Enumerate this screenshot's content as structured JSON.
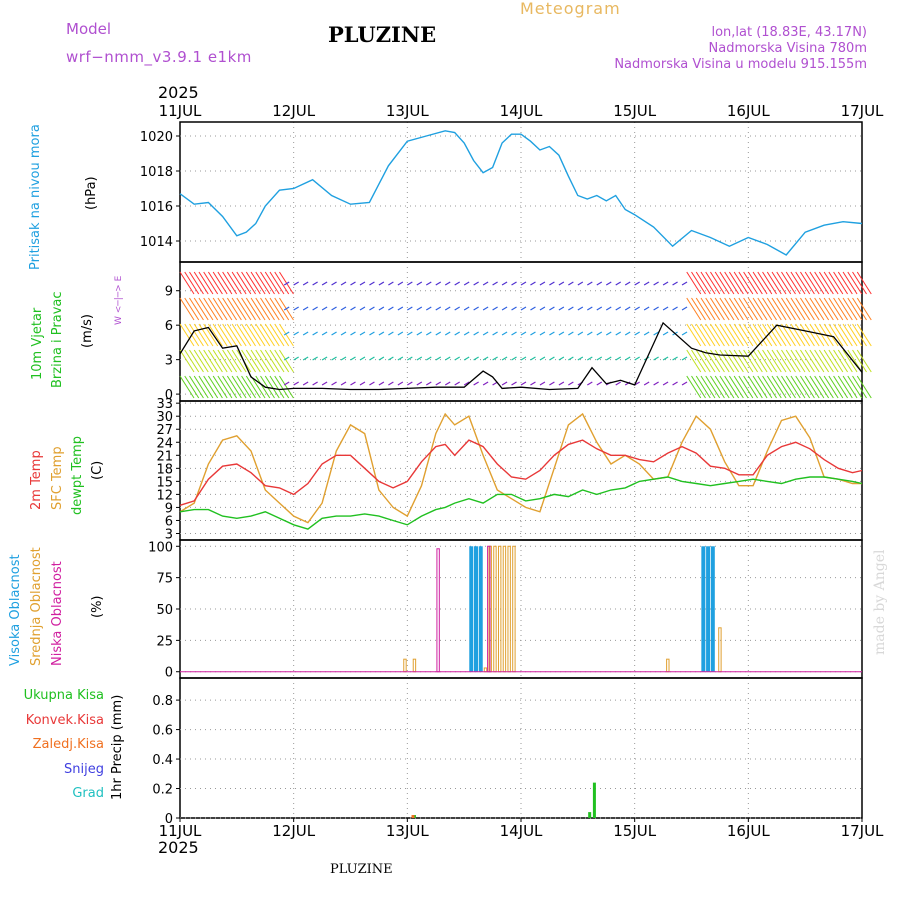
{
  "header": {
    "model_label": "Model",
    "model_name": "wrf−nmm_v3.9.1 e1km",
    "title": "PLUZINE",
    "meteogram_label": "Meteogram",
    "coords": "lon,lat (18.83E, 43.17N)",
    "elevation": "Nadmorska Visina 780m",
    "model_elevation": "Nadmorska Visina u modelu 915.155m"
  },
  "footer": {
    "station": "PLUZINE"
  },
  "watermark": "made by Angel",
  "colors": {
    "model": "#b050d0",
    "meteogram": "#e8b860",
    "pressure": "#1fa0e0",
    "wind_green": "#20c020",
    "wind_black": "#000000",
    "t2m": "#e83838",
    "sfc": "#e0a030",
    "dewpt": "#20c020",
    "high_cloud": "#1fa0e0",
    "mid_cloud": "#e0a030",
    "low_cloud": "#d020a0",
    "total_precip": "#20c020",
    "conv_precip": "#e83838",
    "frz_precip": "#f07020",
    "snow": "#4040e0",
    "hail": "#20c0c0"
  },
  "time_axis": {
    "year": "2025",
    "days": [
      "11JUL",
      "12JUL",
      "13JUL",
      "14JUL",
      "15JUL",
      "16JUL",
      "17JUL"
    ]
  },
  "panels": {
    "pressure": {
      "label": "Pritisak na nivou mora",
      "unit": "(hPa)",
      "ticks": [
        "1014",
        "1016",
        "1018",
        "1020"
      ]
    },
    "wind": {
      "label1": "10m Vjetar",
      "label2": "Brzina i Pravac",
      "unit": "(m/s)",
      "ticks": [
        "0",
        "3",
        "6",
        "9"
      ],
      "compass": "W <─|─> E"
    },
    "temp": {
      "label1": "2m Temp",
      "label2": "SFC Temp",
      "label3": "dewpt Temp",
      "unit": "(C)",
      "ticks": [
        "3",
        "6",
        "9",
        "12",
        "15",
        "18",
        "21",
        "24",
        "27",
        "30",
        "33"
      ]
    },
    "cloud": {
      "label1": "Visoka Oblacnost",
      "label2": "Srednja Oblacnost",
      "label3": "Niska Oblacnost",
      "unit": "(%)",
      "ticks": [
        "0",
        "25",
        "50",
        "75",
        "100"
      ]
    },
    "precip": {
      "labels": [
        "Ukupna Kisa",
        "Konvek.Kisa",
        "Zaledj.Kisa",
        "Snijeg",
        "Grad"
      ],
      "unit": "1hr Precip (mm)",
      "ticks": [
        "0",
        "0.2",
        "0.4",
        "0.6",
        "0.8"
      ]
    }
  },
  "chart_data": [
    {
      "type": "line",
      "title": "Pritisak na nivou mora",
      "ylabel": "(hPa)",
      "ylim": [
        1012.8,
        1020.8
      ],
      "x_hours": [
        0,
        3,
        6,
        9,
        12,
        14,
        16,
        18,
        21,
        24,
        28,
        32,
        36,
        40,
        44,
        48,
        52,
        56,
        58,
        60,
        62,
        64,
        66,
        68,
        70,
        72,
        74,
        76,
        78,
        80,
        82,
        84,
        86,
        88,
        90,
        92,
        94,
        96,
        100,
        104,
        108,
        112,
        116,
        120,
        124,
        128,
        132,
        136,
        140,
        144
      ],
      "series": [
        {
          "name": "Pritisak",
          "values": [
            1016.7,
            1016.1,
            1016.2,
            1015.4,
            1014.3,
            1014.5,
            1015.0,
            1016.0,
            1016.9,
            1017.0,
            1017.5,
            1016.6,
            1016.1,
            1016.2,
            1018.3,
            1019.7,
            1020.0,
            1020.3,
            1020.2,
            1019.6,
            1018.6,
            1017.9,
            1018.2,
            1019.6,
            1020.1,
            1020.1,
            1019.7,
            1019.2,
            1019.4,
            1018.9,
            1017.7,
            1016.6,
            1016.4,
            1016.6,
            1016.3,
            1016.6,
            1015.8,
            1015.5,
            1014.8,
            1013.7,
            1014.6,
            1014.2,
            1013.7,
            1014.2,
            1013.8,
            1013.2,
            1014.5,
            1014.9,
            1015.1,
            1015.0
          ]
        }
      ]
    },
    {
      "type": "line",
      "title": "10m Vjetar Brzina i Pravac",
      "ylabel": "(m/s)",
      "ylim": [
        -0.6,
        11.5
      ],
      "x_hours": [
        0,
        3,
        6,
        9,
        12,
        15,
        18,
        21,
        24,
        30,
        36,
        42,
        48,
        54,
        60,
        64,
        66,
        68,
        72,
        78,
        84,
        87,
        90,
        93,
        96,
        102,
        108,
        111,
        114,
        120,
        126,
        132,
        138,
        144
      ],
      "series": [
        {
          "name": "Brzina",
          "values": [
            3.5,
            5.5,
            5.8,
            4.0,
            4.2,
            1.5,
            0.6,
            0.4,
            0.5,
            0.5,
            0.4,
            0.4,
            0.5,
            0.6,
            0.6,
            2.0,
            1.5,
            0.5,
            0.6,
            0.4,
            0.5,
            2.3,
            0.9,
            1.2,
            0.8,
            6.2,
            4.0,
            3.6,
            3.4,
            3.3,
            6.0,
            5.5,
            5.0,
            1.9
          ]
        }
      ]
    },
    {
      "type": "line",
      "title": "2m Temp / SFC Temp / dewpt Temp",
      "ylabel": "(C)",
      "ylim": [
        1.5,
        33.5
      ],
      "x_hours": [
        0,
        3,
        6,
        9,
        12,
        15,
        18,
        21,
        24,
        27,
        30,
        33,
        36,
        39,
        42,
        45,
        48,
        51,
        54,
        56,
        58,
        61,
        64,
        67,
        70,
        73,
        76,
        79,
        82,
        85,
        88,
        91,
        94,
        97,
        100,
        103,
        106,
        109,
        112,
        115,
        118,
        121,
        124,
        127,
        130,
        133,
        136,
        139,
        142,
        144
      ],
      "series": [
        {
          "name": "2m Temp",
          "values": [
            9.5,
            10.5,
            15.5,
            18.5,
            19.0,
            17.0,
            14.0,
            13.5,
            12.0,
            14.5,
            19.0,
            21.0,
            21.0,
            18.0,
            15.0,
            13.5,
            15.0,
            19.5,
            23.0,
            23.5,
            21.0,
            24.5,
            23.0,
            19.0,
            16.0,
            15.5,
            17.5,
            21.0,
            23.5,
            24.5,
            22.5,
            21.0,
            21.0,
            20.0,
            19.5,
            21.5,
            23.0,
            21.5,
            18.5,
            18.0,
            16.5,
            16.5,
            21.0,
            23.0,
            24.0,
            22.5,
            20.0,
            18.0,
            17.0,
            17.5
          ]
        },
        {
          "name": "SFC Temp",
          "values": [
            8.0,
            10.0,
            19.0,
            24.5,
            25.5,
            22.0,
            13.0,
            10.0,
            7.0,
            5.5,
            10.0,
            22.0,
            28.0,
            26.0,
            13.0,
            9.0,
            7.0,
            14.0,
            26.0,
            30.5,
            28.0,
            30.0,
            21.0,
            13.0,
            11.0,
            9.0,
            8.0,
            18.0,
            28.0,
            30.5,
            24.0,
            19.0,
            21.0,
            19.0,
            15.5,
            16.0,
            24.0,
            30.0,
            27.0,
            19.5,
            14.0,
            14.0,
            22.0,
            29.0,
            30.0,
            25.0,
            16.0,
            15.5,
            14.5,
            14.5
          ]
        },
        {
          "name": "dewpt Temp",
          "values": [
            8.0,
            8.5,
            8.5,
            7.0,
            6.5,
            7.0,
            8.0,
            6.5,
            5.0,
            4.0,
            6.5,
            7.0,
            7.0,
            7.5,
            7.0,
            6.0,
            5.0,
            7.0,
            8.5,
            9.0,
            10.0,
            11.0,
            10.0,
            12.0,
            12.0,
            10.5,
            11.0,
            12.0,
            11.5,
            13.0,
            12.0,
            13.0,
            13.5,
            15.0,
            15.5,
            16.0,
            15.0,
            14.5,
            14.0,
            14.5,
            15.0,
            15.5,
            15.0,
            14.5,
            15.5,
            16.0,
            16.0,
            15.5,
            15.0,
            14.5
          ]
        }
      ]
    },
    {
      "type": "bar",
      "title": "Oblacnost",
      "ylabel": "(%)",
      "ylim": [
        -5,
        105
      ],
      "series": [
        {
          "name": "Visoka Oblacnost",
          "x_hours": [
            61.5,
            62.5,
            63.5,
            110.5,
            111.5,
            112.5
          ],
          "values": [
            100,
            100,
            100,
            100,
            100,
            100
          ]
        },
        {
          "name": "Srednja Oblacnost",
          "x_hours": [
            47.5,
            49.5,
            64.5,
            65.5,
            66.5,
            67.5,
            68.5,
            69.5,
            70.5,
            103,
            114
          ],
          "values": [
            10,
            10,
            3,
            100,
            100,
            100,
            100,
            100,
            100,
            10,
            35
          ]
        },
        {
          "name": "Niska Oblacnost",
          "x_hours": [
            54.5,
            65.2
          ],
          "values": [
            98,
            100
          ]
        }
      ]
    },
    {
      "type": "bar",
      "title": "1hr Precip",
      "ylabel": "1hr Precip (mm)",
      "ylim": [
        0,
        0.95
      ],
      "series": [
        {
          "name": "Ukupna Kisa",
          "x_hours": [
            49.5,
            86.5,
            87.5
          ],
          "values": [
            0.02,
            0.04,
            0.24
          ]
        },
        {
          "name": "Zaledj.Kisa",
          "x_hours": [
            49.2
          ],
          "values": [
            0.02
          ]
        }
      ]
    }
  ]
}
